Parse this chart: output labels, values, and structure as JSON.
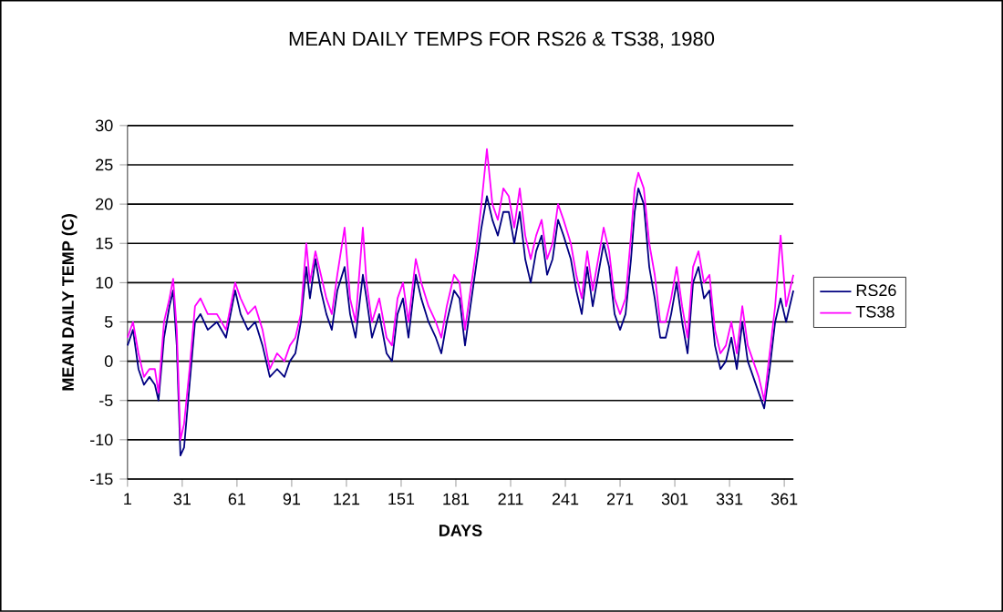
{
  "chart_data": {
    "type": "line",
    "title": "MEAN DAILY TEMPS FOR RS26 & TS38, 1980",
    "xlabel": "DAYS",
    "ylabel": "MEAN DAILY TEMP (C)",
    "x": [
      1,
      4,
      7,
      10,
      13,
      16,
      18,
      21,
      24,
      26,
      28,
      30,
      32,
      35,
      38,
      41,
      45,
      50,
      55,
      60,
      63,
      67,
      71,
      75,
      79,
      83,
      87,
      90,
      93,
      96,
      99,
      101,
      104,
      107,
      110,
      113,
      116,
      120,
      123,
      126,
      130,
      132,
      135,
      139,
      143,
      146,
      149,
      152,
      155,
      159,
      162,
      166,
      170,
      173,
      176,
      180,
      183,
      186,
      189,
      192,
      195,
      198,
      201,
      204,
      207,
      210,
      213,
      216,
      219,
      222,
      225,
      228,
      231,
      234,
      237,
      240,
      244,
      247,
      250,
      253,
      256,
      259,
      262,
      265,
      268,
      271,
      274,
      277,
      279,
      281,
      284,
      287,
      290,
      293,
      296,
      299,
      302,
      305,
      308,
      311,
      314,
      317,
      320,
      323,
      326,
      329,
      332,
      335,
      338,
      341,
      344,
      347,
      350,
      353,
      356,
      359,
      362,
      366
    ],
    "series": [
      {
        "name": "RS26",
        "color": "#000080",
        "values": [
          2,
          4,
          -1,
          -3,
          -2,
          -3,
          -5,
          3,
          7,
          9,
          2,
          -12,
          -11,
          -3,
          5,
          6,
          4,
          5,
          3,
          9,
          6,
          4,
          5,
          2,
          -2,
          -1,
          -2,
          0,
          1,
          5,
          12,
          8,
          13,
          9,
          6,
          4,
          9,
          12,
          6,
          3,
          11,
          8,
          3,
          6,
          1,
          0,
          6,
          8,
          3,
          11,
          8,
          5,
          3,
          1,
          5,
          9,
          8,
          2,
          7,
          12,
          17,
          21,
          18,
          16,
          19,
          19,
          15,
          19,
          13,
          10,
          14,
          16,
          11,
          13,
          18,
          16,
          13,
          9,
          6,
          12,
          7,
          11,
          15,
          12,
          6,
          4,
          6,
          13,
          19,
          22,
          20,
          12,
          8,
          3,
          3,
          6,
          10,
          5,
          1,
          10,
          12,
          8,
          9,
          2,
          -1,
          0,
          3,
          -1,
          5,
          0,
          -2,
          -4,
          -6,
          -1,
          5,
          8,
          5,
          9
        ]
      },
      {
        "name": "TS38",
        "color": "#ff00ff",
        "values": [
          3,
          5,
          1,
          -2,
          -1,
          -1,
          -4,
          5,
          8,
          10.5,
          4,
          -10,
          -8,
          -1,
          7,
          8,
          6,
          6,
          4,
          10,
          8,
          6,
          7,
          4,
          -1,
          1,
          0,
          2,
          3,
          6,
          15,
          10,
          14,
          11,
          8,
          6,
          11,
          17,
          8,
          5,
          17,
          10,
          5,
          8,
          3,
          2,
          8,
          10,
          5,
          13,
          10,
          7,
          5,
          3,
          7,
          11,
          10,
          4,
          9,
          14,
          20,
          27,
          20,
          18,
          22,
          21,
          17,
          22,
          16,
          13,
          16,
          18,
          13,
          15,
          20,
          18,
          15,
          11,
          8,
          14,
          9,
          13,
          17,
          14,
          8,
          6,
          8,
          16,
          22,
          24,
          22,
          15,
          11,
          5,
          5,
          8,
          12,
          7,
          3,
          12,
          14,
          10,
          11,
          4,
          1,
          2,
          5,
          1,
          7,
          2,
          0,
          -2,
          -5,
          1,
          7,
          16,
          7,
          11
        ]
      }
    ],
    "xlim": [
      1,
      366
    ],
    "xticks": [
      1,
      31,
      61,
      91,
      121,
      151,
      181,
      211,
      241,
      271,
      301,
      331,
      361
    ],
    "ylim": [
      -15,
      30
    ],
    "yticks": [
      -15,
      -10,
      -5,
      0,
      5,
      10,
      15,
      20,
      25,
      30
    ],
    "grid": "y",
    "legend": "right",
    "marker": "none",
    "line_style": "solid"
  }
}
